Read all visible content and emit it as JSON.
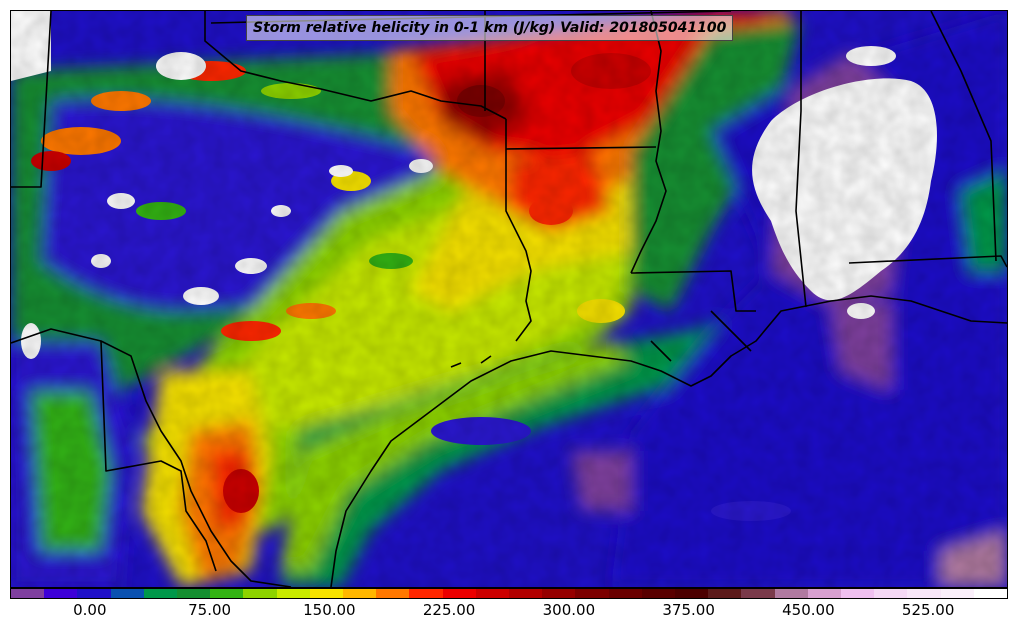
{
  "title": "Storm relative helicity in 0-1 km (J/kg) Valid: 201805041100",
  "colorbar": {
    "colors": [
      "#7f3f9f",
      "#3d00d8",
      "#1f10c8",
      "#0a51b0",
      "#00984a",
      "#148f30",
      "#33b313",
      "#8dd300",
      "#c8ea00",
      "#f7e300",
      "#ffb700",
      "#ff7800",
      "#ff2700",
      "#ec0000",
      "#cc0000",
      "#b20000",
      "#960000",
      "#7c0000",
      "#6a0000",
      "#590000",
      "#4c0000",
      "#5c1a1a",
      "#7a3a4a",
      "#b07aa0",
      "#d8a0d0",
      "#f0c0f0",
      "#f5d8f5",
      "#f8e6f8",
      "#fbf0fb",
      "#ffffff"
    ],
    "tick_labels": [
      "0.00",
      "75.00",
      "150.00",
      "225.00",
      "300.00",
      "375.00",
      "450.00",
      "525.00"
    ],
    "tick_values": [
      0,
      75,
      150,
      225,
      300,
      375,
      450,
      525
    ],
    "range": [
      -50,
      575
    ]
  },
  "map": {
    "legend_position": "bottom"
  }
}
